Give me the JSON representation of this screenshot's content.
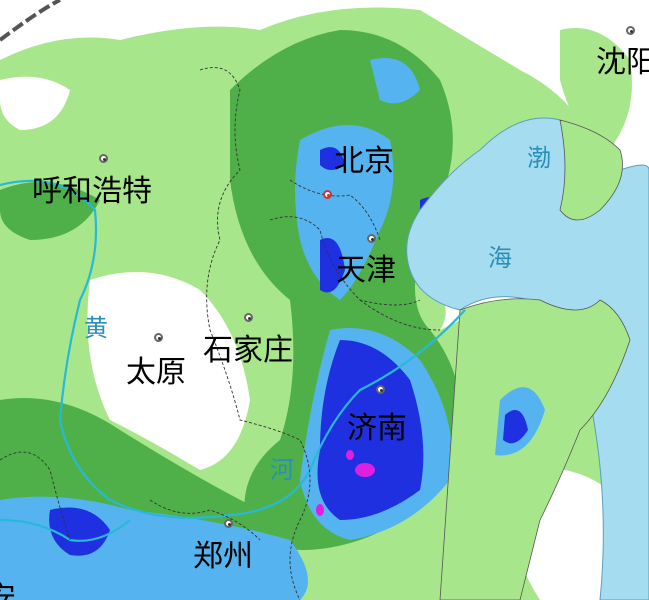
{
  "map": {
    "colors": {
      "land": "#ffffff",
      "light_rain": "#a8e68c",
      "moderate_rain": "#4fb04a",
      "heavy_rain": "#55b4f0",
      "rainstorm": "#1e30e0",
      "heavy_rainstorm": "#e020e0",
      "sea": "#a5dcf0",
      "river": "#28b8d8",
      "border": "#333333"
    },
    "cities": [
      {
        "name": "沈阳",
        "type": "city"
      },
      {
        "name": "呼和浩特",
        "type": "city"
      },
      {
        "name": "北京",
        "type": "capital"
      },
      {
        "name": "天津",
        "type": "city"
      },
      {
        "name": "太原",
        "type": "city"
      },
      {
        "name": "石家庄",
        "type": "city"
      },
      {
        "name": "济南",
        "type": "city"
      },
      {
        "name": "郑州",
        "type": "city"
      },
      {
        "name": "安",
        "type": "city"
      }
    ],
    "water_labels": {
      "bohai_1": "渤",
      "bohai_2": "海",
      "huanghe_1": "黄",
      "huanghe_2": "河"
    }
  }
}
